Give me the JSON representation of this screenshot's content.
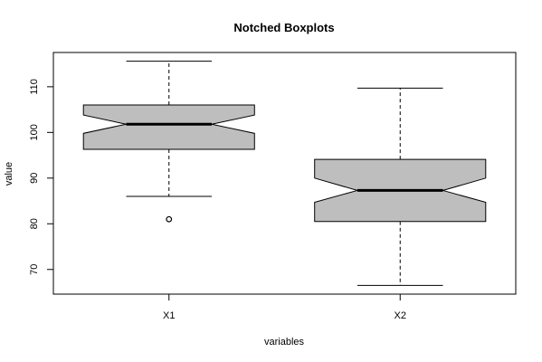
{
  "chart_data": {
    "type": "boxplot",
    "title": "Notched Boxplots",
    "xlabel": "variables",
    "ylabel": "value",
    "ylim": [
      64.6,
      117.5
    ],
    "yticks": [
      70,
      80,
      90,
      100,
      110
    ],
    "categories": [
      "X1",
      "X2"
    ],
    "boxes": [
      {
        "name": "X1",
        "whisker_low": 86.0,
        "q1": 96.3,
        "median": 101.8,
        "q3": 106.0,
        "whisker_high": 115.6,
        "notch_low": 99.8,
        "notch_high": 103.8,
        "outliers": [
          81.0
        ]
      },
      {
        "name": "X2",
        "whisker_low": 66.5,
        "q1": 80.5,
        "median": 87.3,
        "q3": 94.1,
        "whisker_high": 109.7,
        "notch_low": 84.7,
        "notch_high": 90.0,
        "outliers": []
      }
    ],
    "colors": {
      "box_fill": "#bebebe",
      "stroke": "#000000"
    },
    "grid": false
  }
}
